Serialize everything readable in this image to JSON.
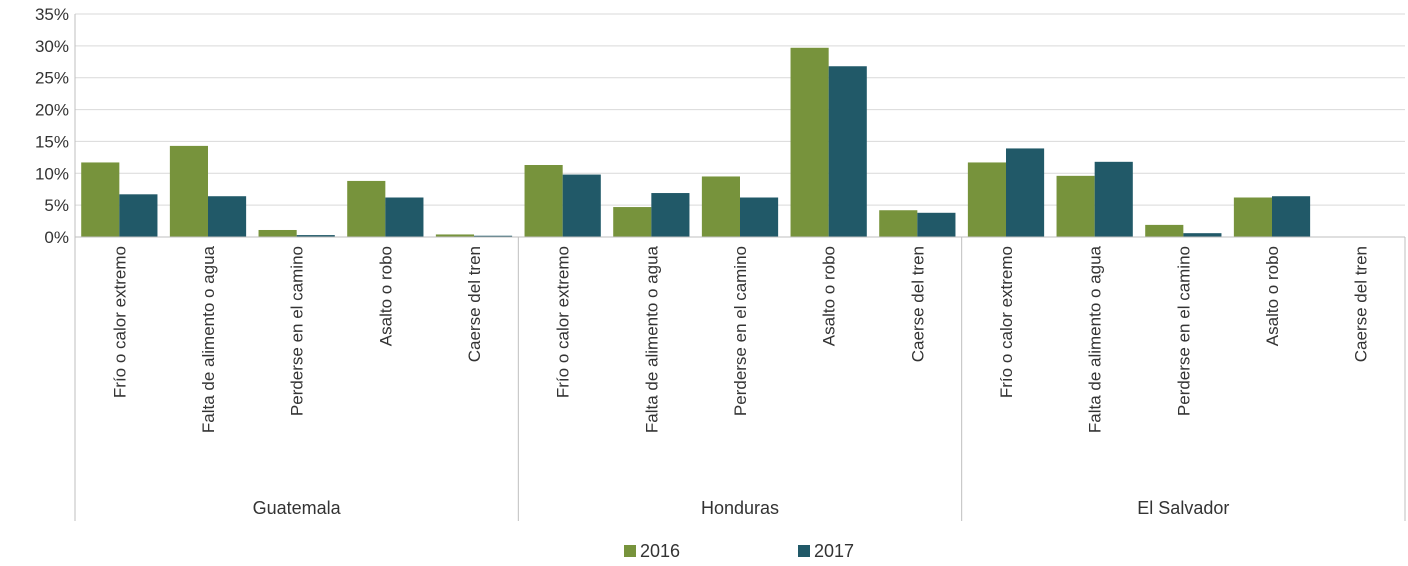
{
  "chart_data": {
    "type": "bar",
    "title": "",
    "xlabel": "",
    "ylabel": "",
    "ylim": [
      0,
      35
    ],
    "y_ticks": [
      "0%",
      "5%",
      "10%",
      "15%",
      "20%",
      "25%",
      "30%",
      "35%"
    ],
    "y_tick_values": [
      0,
      5,
      10,
      15,
      20,
      25,
      30,
      35
    ],
    "grid": true,
    "legend_position": "bottom",
    "groups": [
      {
        "name": "Guatemala",
        "categories": [
          "Frío o calor extremo",
          "Falta de alimento o agua",
          "Perderse en el camino",
          "Asalto o robo",
          "Caerse del tren"
        ]
      },
      {
        "name": "Honduras",
        "categories": [
          "Frío o calor extremo",
          "Falta de alimento o agua",
          "Perderse en el camino",
          "Asalto o robo",
          "Caerse del tren"
        ]
      },
      {
        "name": "El Salvador",
        "categories": [
          "Frío o calor extremo",
          "Falta de alimento o agua",
          "Perderse en el camino",
          "Asalto o robo",
          "Caerse del tren"
        ]
      }
    ],
    "series": [
      {
        "name": "2016",
        "color": "#77933c",
        "values": [
          11.7,
          14.3,
          1.1,
          8.8,
          0.4,
          11.3,
          4.7,
          9.5,
          29.7,
          4.2,
          11.7,
          9.6,
          1.9,
          6.2,
          0
        ]
      },
      {
        "name": "2017",
        "color": "#215968",
        "values": [
          6.7,
          6.4,
          0.3,
          6.2,
          0.2,
          9.8,
          6.9,
          6.2,
          26.8,
          3.8,
          13.9,
          11.8,
          0.6,
          6.4,
          0
        ]
      }
    ]
  }
}
